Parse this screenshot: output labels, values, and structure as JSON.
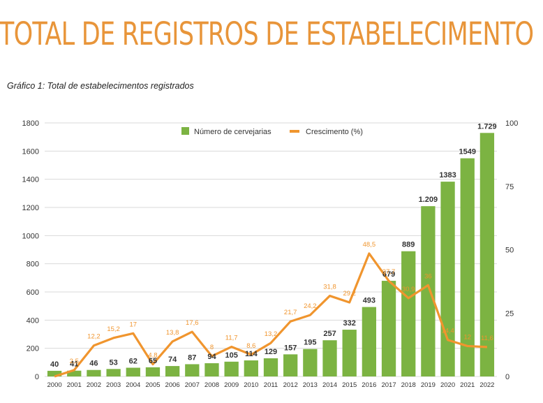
{
  "header": {
    "title": "TOTAL DE REGISTROS DE ESTABELECIMENTO",
    "caption": "Gráfico 1: Total de estabelecimentos registrados"
  },
  "colors": {
    "title": "#e8953a",
    "bars": "#7cb342",
    "line": "#f0952e",
    "line_labels": "#f0952e",
    "bar_labels": "#333333",
    "grid": "#d9d9d9"
  },
  "chart_data": {
    "type": "bar+line",
    "title": "",
    "categories": [
      "2000",
      "2001",
      "2002",
      "2003",
      "2004",
      "2005",
      "2006",
      "2007",
      "2008",
      "2009",
      "2010",
      "2011",
      "2012",
      "2013",
      "2014",
      "2015",
      "2016",
      "2017",
      "2018",
      "2019",
      "2020",
      "2021",
      "2022"
    ],
    "series": [
      {
        "name": "Número de cervejarias",
        "type": "bar",
        "axis": "left",
        "values": [
          40,
          41,
          46,
          53,
          62,
          65,
          74,
          87,
          94,
          105,
          114,
          129,
          157,
          195,
          257,
          332,
          493,
          679,
          889,
          1209,
          1383,
          1549,
          1729
        ],
        "labels": [
          "40",
          "41",
          "46",
          "53",
          "62",
          "65",
          "74",
          "87",
          "94",
          "105",
          "114",
          "129",
          "157",
          "195",
          "257",
          "332",
          "493",
          "679",
          "889",
          "1.209",
          "1383",
          "1549",
          "1.729"
        ]
      },
      {
        "name": "Crescimento (%)",
        "type": "line",
        "axis": "right",
        "values": [
          null,
          2.5,
          12.2,
          15.2,
          17,
          4.8,
          13.8,
          17.6,
          8,
          11.7,
          8.6,
          13.2,
          21.7,
          24.2,
          31.8,
          29.2,
          48.5,
          37.7,
          30.9,
          36,
          14.4,
          12,
          11.6
        ],
        "labels": [
          "",
          "2,5",
          "12,2",
          "15,2",
          "17",
          "4,8",
          "13,8",
          "17,6",
          "8",
          "11,7",
          "8,6",
          "13,2",
          "21,7",
          "24,2",
          "31,8",
          "29,2",
          "48,5",
          "37,7",
          "30,9",
          "36",
          "14,4",
          "12",
          "11,6"
        ]
      }
    ],
    "y_left": {
      "lim": [
        0,
        1800
      ],
      "ticks": [
        "0",
        "200",
        "400",
        "600",
        "800",
        "1000",
        "1200",
        "1400",
        "1600",
        "1800"
      ]
    },
    "y_right": {
      "lim": [
        0,
        100
      ],
      "ticks": [
        "0",
        "25",
        "50",
        "75",
        "100"
      ]
    },
    "grid": true,
    "legend": "top-center"
  }
}
